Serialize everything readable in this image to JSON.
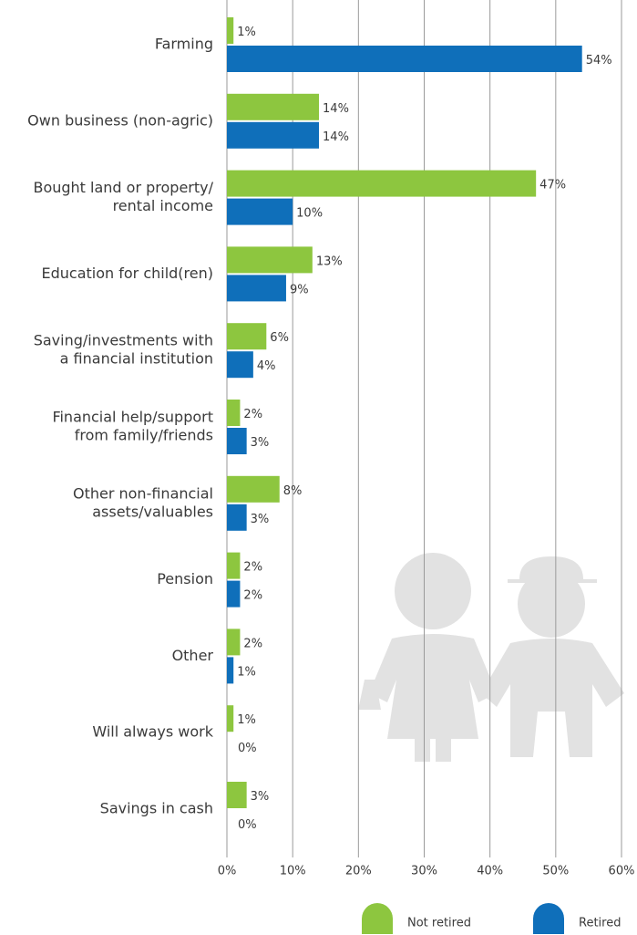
{
  "chart_data": {
    "type": "bar",
    "orientation": "horizontal",
    "categories": [
      [
        "Farming"
      ],
      [
        "Own business (non-agric)"
      ],
      [
        "Bought land or property/",
        "rental income"
      ],
      [
        "Education for child(ren)"
      ],
      [
        "Saving/investments with",
        "a financial institution"
      ],
      [
        "Financial help/support",
        "from family/friends"
      ],
      [
        "Other non-financial",
        "assets/valuables"
      ],
      [
        "Pension"
      ],
      [
        "Other"
      ],
      [
        "Will always work"
      ],
      [
        "Savings in cash"
      ]
    ],
    "series": [
      {
        "name": "Not retired",
        "color": "#8dc63f",
        "values": [
          1,
          14,
          47,
          13,
          6,
          2,
          8,
          2,
          2,
          1,
          3
        ],
        "value_labels": [
          "1%",
          "14%",
          "47%",
          "13%",
          "6%",
          "2%",
          "8%",
          "2%",
          "2%",
          "1%",
          "3%"
        ]
      },
      {
        "name": "Retired",
        "color": "#0f6fba",
        "values": [
          54,
          14,
          10,
          9,
          4,
          3,
          3,
          2,
          1,
          0,
          0
        ],
        "value_labels": [
          "54%",
          "14%",
          "10%",
          "9%",
          "4%",
          "3%",
          "3%",
          "2%",
          "1%",
          "0%",
          "0%"
        ]
      }
    ],
    "xlim": [
      0,
      60
    ],
    "xticks": [
      {
        "value": 0,
        "label": "0%"
      },
      {
        "value": 10,
        "label": "10%"
      },
      {
        "value": 20,
        "label": "20%"
      },
      {
        "value": 30,
        "label": "30%"
      },
      {
        "value": 40,
        "label": "40%"
      },
      {
        "value": 50,
        "label": "50%"
      },
      {
        "value": 60,
        "label": "60%"
      }
    ],
    "grid": true
  }
}
